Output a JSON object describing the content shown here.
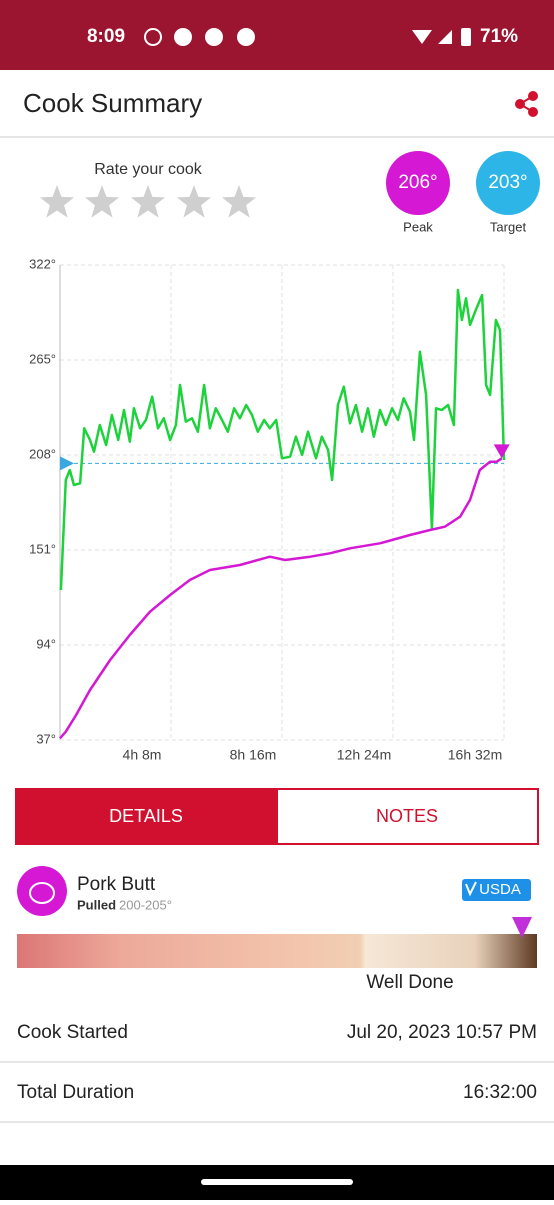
{
  "status_bar": {
    "time": "8:09",
    "battery": "71%"
  },
  "header": {
    "title": "Cook Summary"
  },
  "rating": {
    "label": "Rate your cook"
  },
  "summary": {
    "peak": {
      "label": "206°",
      "caption": "Peak"
    },
    "target": {
      "label": "203°",
      "caption": "Target"
    }
  },
  "chart_data": {
    "type": "line",
    "xlim": [
      0,
      992
    ],
    "ylim": [
      37,
      322
    ],
    "xticks": [
      {
        "value": 248,
        "label": "4h 8m"
      },
      {
        "value": 496,
        "label": "8h 16m"
      },
      {
        "value": 744,
        "label": "12h 24m"
      },
      {
        "value": 992,
        "label": "16h 32m"
      }
    ],
    "yticks": [
      {
        "value": 37,
        "label": "37°"
      },
      {
        "value": 94,
        "label": "94°"
      },
      {
        "value": 151,
        "label": "151°"
      },
      {
        "value": 208,
        "label": "208°"
      },
      {
        "value": 265,
        "label": "265°"
      },
      {
        "value": 322,
        "label": "322°"
      }
    ],
    "grid": true,
    "target": 203,
    "target_color": "#3ba7e0",
    "series": [
      {
        "color": "#1ed23c",
        "x": [
          2,
          13,
          22,
          31,
          45,
          54,
          67,
          76,
          89,
          103,
          116,
          130,
          143,
          156,
          165,
          179,
          192,
          206,
          219,
          232,
          246,
          259,
          268,
          281,
          295,
          308,
          322,
          335,
          348,
          362,
          375,
          389,
          402,
          416,
          429,
          442,
          456,
          469,
          483,
          496,
          514,
          527,
          541,
          554,
          572,
          585,
          599,
          608,
          621,
          634,
          648,
          661,
          675,
          688,
          701,
          715,
          728,
          742,
          755,
          768,
          782,
          791,
          804,
          818,
          831,
          840,
          853,
          867,
          880,
          889,
          898,
          907,
          916,
          929,
          943,
          952,
          961,
          974,
          983,
          992
        ],
        "values": [
          127,
          193,
          199,
          190,
          191,
          224,
          217,
          210,
          226,
          214,
          232,
          217,
          235,
          216,
          236,
          224,
          229,
          243,
          224,
          230,
          217,
          226,
          250,
          228,
          230,
          222,
          250,
          224,
          236,
          229,
          222,
          236,
          230,
          238,
          232,
          222,
          229,
          224,
          229,
          206,
          207,
          219,
          208,
          222,
          206,
          219,
          211,
          193,
          238,
          249,
          227,
          238,
          222,
          236,
          219,
          235,
          226,
          236,
          229,
          242,
          234,
          217,
          270,
          244,
          164,
          236,
          235,
          238,
          226,
          307,
          289,
          302,
          286,
          295,
          304,
          250,
          244,
          289,
          283,
          205
        ]
      },
      {
        "color": "#d418d4",
        "x": [
          0,
          13,
          36,
          67,
          112,
          156,
          201,
          246,
          290,
          335,
          402,
          469,
          503,
          559,
          603,
          648,
          715,
          782,
          827,
          860,
          894,
          916,
          938,
          961,
          976,
          987
        ],
        "values": [
          38,
          42,
          52,
          67,
          85,
          100,
          114,
          124,
          133,
          139,
          142,
          147,
          145,
          147,
          149,
          152,
          155,
          160,
          163,
          165,
          171,
          181,
          199,
          204,
          204,
          206
        ]
      }
    ]
  },
  "tabs": {
    "details": "DETAILS",
    "notes": "NOTES"
  },
  "meat": {
    "name": "Pork Butt",
    "style": "Pulled",
    "range": "200-205°",
    "badge": "USDA",
    "doneness": "Well Done"
  },
  "rows": [
    {
      "label": "Cook Started",
      "value": "Jul 20, 2023 10:57 PM"
    },
    {
      "label": "Total Duration",
      "value": "16:32:00"
    }
  ]
}
